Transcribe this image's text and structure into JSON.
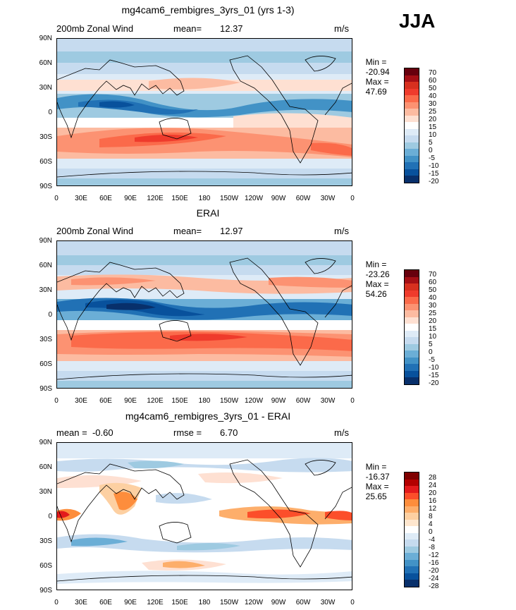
{
  "season": "JJA",
  "panels": [
    {
      "title": "mg4cam6_rembigres_3yrs_01 (yrs 1-3)",
      "header_left": "200mb Zonal Wind",
      "header_mid_label": "mean=",
      "header_mid_value": "12.37",
      "units": "m/s",
      "min_label": "Min =",
      "min": "-20.94",
      "max_label": "Max =",
      "max": "47.69",
      "colorbar_levels": [
        "70",
        "60",
        "50",
        "40",
        "30",
        "25",
        "20",
        "15",
        "10",
        "5",
        "0",
        "-5",
        "-10",
        "-15",
        "-20"
      ]
    },
    {
      "title": "ERAI",
      "header_left": "200mb Zonal Wind",
      "header_mid_label": "mean=",
      "header_mid_value": "12.97",
      "units": "m/s",
      "min_label": "Min =",
      "min": "-23.26",
      "max_label": "Max =",
      "max": "54.26",
      "colorbar_levels": [
        "70",
        "60",
        "50",
        "40",
        "30",
        "25",
        "20",
        "15",
        "10",
        "5",
        "0",
        "-5",
        "-10",
        "-15",
        "-20"
      ]
    },
    {
      "title": "mg4cam6_rembigres_3yrs_01 - ERAI",
      "header_left": "mean =  -0.60",
      "header_mid_label": "rmse =",
      "header_mid_value": "6.70",
      "units": "m/s",
      "min_label": "Min =",
      "min": "-16.37",
      "max_label": "Max =",
      "max": "25.65",
      "colorbar_levels": [
        "28",
        "24",
        "20",
        "16",
        "12",
        "8",
        "4",
        "0",
        "-4",
        "-8",
        "-12",
        "-16",
        "-20",
        "-24",
        "-28"
      ]
    }
  ],
  "lat_labels": [
    "90N",
    "60N",
    "30N",
    "0",
    "30S",
    "60S",
    "90S"
  ],
  "lon_labels": [
    "0",
    "30E",
    "60E",
    "90E",
    "120E",
    "150E",
    "180",
    "150W",
    "120W",
    "90W",
    "60W",
    "30W",
    "0"
  ],
  "colors": {
    "mean_scale": [
      "#67000d",
      "#a50f15",
      "#d7301f",
      "#ef3b2c",
      "#fb6a4a",
      "#fc9272",
      "#fcbba1",
      "#fee0d2",
      "#ffffff",
      "#deebf7",
      "#c6dbef",
      "#9ecae1",
      "#6baed6",
      "#4292c6",
      "#2171b5",
      "#08519c",
      "#08306b"
    ],
    "diff_scale": [
      "#7f0000",
      "#b30000",
      "#e31a1c",
      "#fc4e2a",
      "#fd8d3c",
      "#fdae6b",
      "#fdd0a2",
      "#fee6ce",
      "#ffffff",
      "#deebf7",
      "#c6dbef",
      "#9ecae1",
      "#6baed6",
      "#4292c6",
      "#2171b5",
      "#08519c",
      "#08306b"
    ]
  }
}
